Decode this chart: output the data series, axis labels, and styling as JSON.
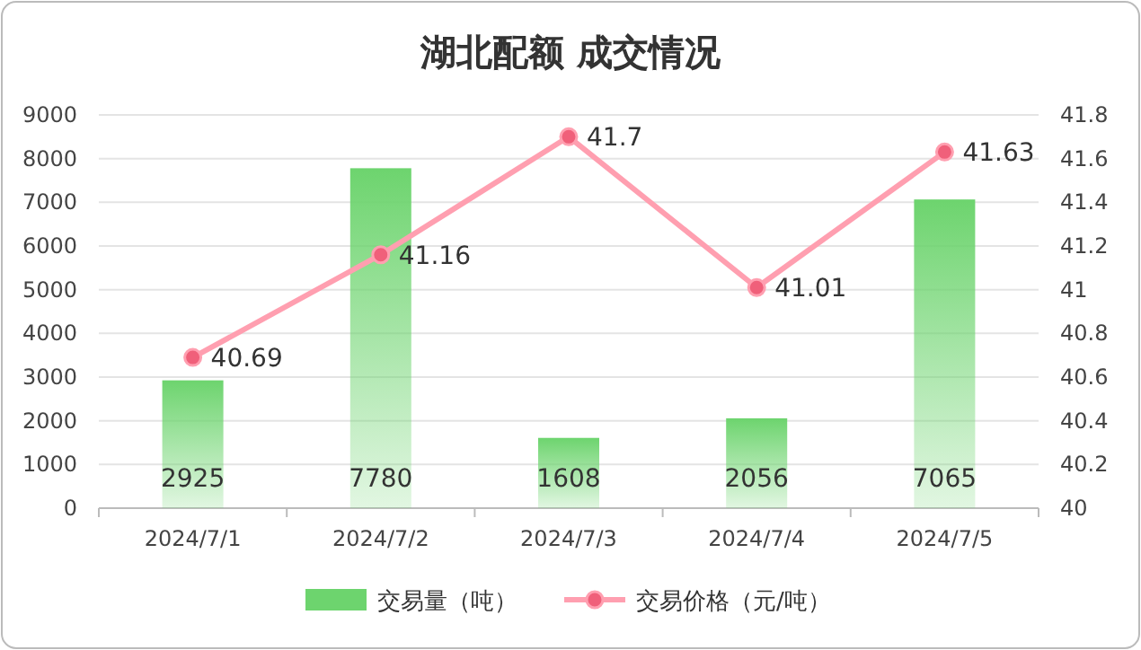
{
  "chart_data": {
    "type": "bar",
    "title": "湖北配额 成交情况",
    "categories": [
      "2024/7/1",
      "2024/7/2",
      "2024/7/3",
      "2024/7/4",
      "2024/7/5"
    ],
    "series": [
      {
        "name": "交易量（吨）",
        "color": "#6dd46e",
        "values": [
          2925,
          7780,
          1608,
          2056,
          7065
        ]
      },
      {
        "name": "交易价格（元/吨）",
        "type": "line",
        "axis": "y2",
        "color": "#ff9fb0",
        "values": [
          40.69,
          41.16,
          41.7,
          41.01,
          41.63
        ]
      }
    ],
    "ylim": [
      0,
      9000
    ],
    "yticks": [
      0,
      1000,
      2000,
      3000,
      4000,
      5000,
      6000,
      7000,
      8000,
      9000
    ],
    "y2lim": [
      40,
      41.8
    ],
    "y2ticks": [
      40,
      40.2,
      40.4,
      40.6,
      40.8,
      41,
      41.2,
      41.4,
      41.6,
      41.8
    ],
    "grid": "y",
    "legend": "bottom",
    "marker": "circle",
    "line_style": "solid",
    "data_labels": true
  }
}
